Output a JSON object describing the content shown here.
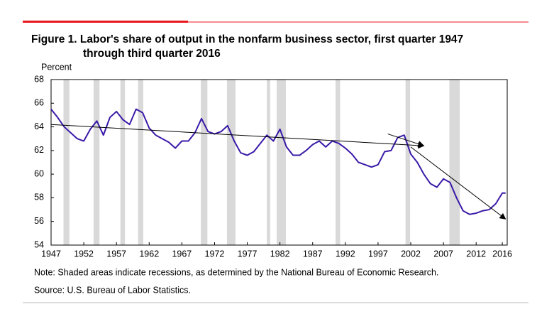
{
  "chart_data": {
    "type": "line",
    "title": [
      "Figure 1. Labor's share of output in the nonfarm business sector, first quarter 1947",
      "through third quarter 2016"
    ],
    "y_label": "Percent",
    "x": [
      1947,
      1948,
      1949,
      1950,
      1951,
      1952,
      1953,
      1954,
      1955,
      1956,
      1957,
      1958,
      1959,
      1960,
      1961,
      1962,
      1963,
      1964,
      1965,
      1966,
      1967,
      1968,
      1969,
      1970,
      1971,
      1972,
      1973,
      1974,
      1975,
      1976,
      1977,
      1978,
      1979,
      1980,
      1981,
      1982,
      1983,
      1984,
      1985,
      1986,
      1987,
      1988,
      1989,
      1990,
      1991,
      1992,
      1993,
      1994,
      1995,
      1996,
      1997,
      1998,
      1999,
      2000,
      2001,
      2002,
      2003,
      2004,
      2005,
      2006,
      2007,
      2008,
      2009,
      2010,
      2011,
      2012,
      2013,
      2014,
      2015,
      2016,
      2016.5
    ],
    "series": [
      {
        "color": "#3a1aa8",
        "values": [
          65.5,
          64.8,
          64.0,
          63.5,
          63.0,
          62.8,
          63.8,
          64.5,
          63.3,
          64.8,
          65.3,
          64.6,
          64.2,
          65.5,
          65.2,
          63.9,
          63.3,
          63.0,
          62.7,
          62.2,
          62.8,
          62.8,
          63.5,
          64.7,
          63.6,
          63.4,
          63.6,
          64.1,
          62.8,
          61.8,
          61.6,
          61.9,
          62.6,
          63.3,
          62.8,
          63.8,
          62.3,
          61.6,
          61.6,
          62.0,
          62.5,
          62.8,
          62.3,
          62.8,
          62.6,
          62.2,
          61.7,
          61.0,
          60.8,
          60.6,
          60.8,
          61.9,
          62.0,
          63.1,
          63.3,
          61.7,
          61.0,
          60.0,
          59.2,
          58.9,
          59.6,
          59.3,
          58.0,
          56.9,
          56.6,
          56.7,
          56.9,
          57.0,
          57.5,
          58.4,
          58.4
        ]
      }
    ],
    "recessions": [
      [
        1948.9,
        1949.8
      ],
      [
        1953.5,
        1954.4
      ],
      [
        1957.6,
        1958.3
      ],
      [
        1960.3,
        1961.1
      ],
      [
        1969.9,
        1970.9
      ],
      [
        1973.9,
        1975.2
      ],
      [
        1980.0,
        1980.5
      ],
      [
        1981.5,
        1982.9
      ],
      [
        1990.5,
        1991.2
      ],
      [
        2001.2,
        2001.9
      ],
      [
        2007.9,
        2009.5
      ]
    ],
    "recession_color": "#d9d9d9",
    "trend_lines": [
      {
        "x": [
          1947,
          2004
        ],
        "y": [
          64.2,
          62.4
        ]
      },
      {
        "x": [
          1998.5,
          2004
        ],
        "y": [
          63.4,
          62.4
        ]
      },
      {
        "x": [
          2002,
          2016.5
        ],
        "y": [
          62.3,
          56.2
        ]
      }
    ],
    "xlim": [
      1947,
      2016.75
    ],
    "xticks": [
      1947,
      1952,
      1957,
      1962,
      1967,
      1972,
      1977,
      1982,
      1987,
      1992,
      1997,
      2002,
      2007,
      2012,
      2016
    ],
    "ylim": [
      54,
      68
    ],
    "yticks": [
      54,
      56,
      58,
      60,
      62,
      64,
      66,
      68
    ],
    "note": "Note: Shaded areas indicate recessions, as determined by the National Bureau of Economic Research.",
    "source": "Source: U.S. Bureau of Labor Statistics."
  }
}
